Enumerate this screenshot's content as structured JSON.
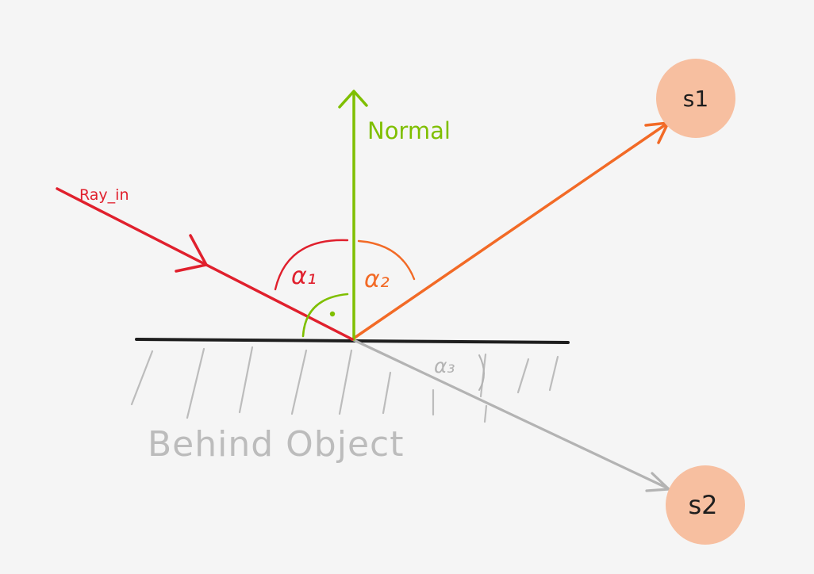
{
  "labels": {
    "normal": "Normal",
    "ray_in": "Ray_in",
    "alpha1": "α₁",
    "alpha2": "α₂",
    "alpha3": "α₃",
    "behind": "Behind Object"
  },
  "nodes": {
    "s1": "s1",
    "s2": "s2"
  },
  "colors": {
    "background": "#f5f5f5",
    "ray_in": "#e0202d",
    "normal": "#7fbf00",
    "reflected": "#f26a26",
    "refracted": "#b3b3b3",
    "surface": "#1e1e1e",
    "node_fill": "#f7bfa0",
    "hatch": "#bcbcbc"
  }
}
